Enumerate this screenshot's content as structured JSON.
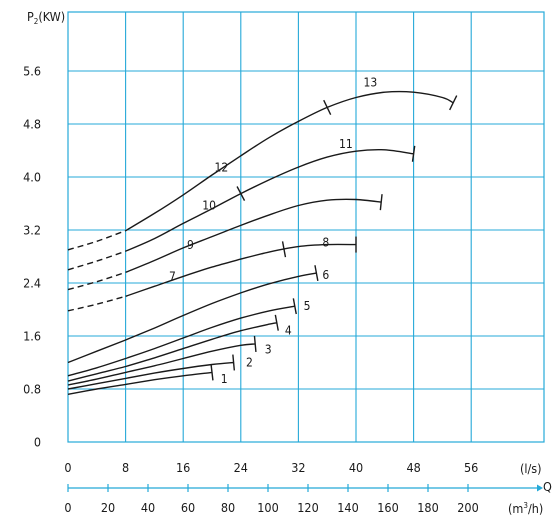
{
  "chart_data": {
    "type": "line",
    "ylabel_main": "P",
    "ylabel_sub": "2",
    "ylabel_unit": "(KW)",
    "x_unit": "(l/s)",
    "x_symbol": "Q",
    "x2_unit_main": "(m",
    "x2_unit_sup": "3",
    "x2_unit_end": "/h)",
    "xlim": [
      0,
      62
    ],
    "ylim": [
      0,
      6.0
    ],
    "xticks": [
      "0",
      "8",
      "16",
      "24",
      "32",
      "40",
      "48",
      "56"
    ],
    "xtick_values": [
      0,
      8,
      16,
      24,
      32,
      40,
      48,
      56
    ],
    "x2ticks": [
      "0",
      "20",
      "40",
      "60",
      "80",
      "100",
      "120",
      "140",
      "160",
      "180",
      "200"
    ],
    "x2tick_values": [
      0,
      20,
      40,
      60,
      80,
      100,
      120,
      140,
      160,
      180,
      200
    ],
    "yticks": [
      "0",
      "0.8",
      "1.6",
      "2.4",
      "3.2",
      "4.0",
      "4.8",
      "5.6"
    ],
    "ytick_values": [
      0,
      0.8,
      1.6,
      2.4,
      3.2,
      4.0,
      4.8,
      5.6
    ],
    "series": [
      {
        "name": "1",
        "points": [
          [
            0,
            0.72
          ],
          [
            4,
            0.8
          ],
          [
            8,
            0.87
          ],
          [
            12,
            0.94
          ],
          [
            16,
            1.0
          ],
          [
            20,
            1.05
          ]
        ],
        "dash_to": 0,
        "marks": [
          20
        ],
        "label_pos": [
          21.7,
          0.95
        ]
      },
      {
        "name": "2",
        "points": [
          [
            0,
            0.8
          ],
          [
            4,
            0.88
          ],
          [
            8,
            0.96
          ],
          [
            12,
            1.04
          ],
          [
            16,
            1.11
          ],
          [
            20,
            1.17
          ],
          [
            23,
            1.2
          ]
        ],
        "dash_to": 0,
        "marks": [
          23
        ],
        "label_pos": [
          25.2,
          1.2
        ]
      },
      {
        "name": "3",
        "points": [
          [
            0,
            0.86
          ],
          [
            4,
            0.95
          ],
          [
            8,
            1.05
          ],
          [
            12,
            1.15
          ],
          [
            16,
            1.26
          ],
          [
            20,
            1.37
          ],
          [
            24,
            1.46
          ],
          [
            26,
            1.48
          ]
        ],
        "dash_to": 0,
        "marks": [
          26
        ],
        "label_pos": [
          27.8,
          1.4
        ]
      },
      {
        "name": "4",
        "points": [
          [
            0,
            0.92
          ],
          [
            4,
            1.03
          ],
          [
            8,
            1.14
          ],
          [
            12,
            1.27
          ],
          [
            16,
            1.41
          ],
          [
            20,
            1.55
          ],
          [
            24,
            1.68
          ],
          [
            28,
            1.78
          ],
          [
            29,
            1.8
          ]
        ],
        "dash_to": 0,
        "marks": [
          29
        ],
        "label_pos": [
          30.6,
          1.68
        ]
      },
      {
        "name": "5",
        "points": [
          [
            0,
            1.0
          ],
          [
            4,
            1.12
          ],
          [
            8,
            1.26
          ],
          [
            12,
            1.41
          ],
          [
            16,
            1.57
          ],
          [
            20,
            1.73
          ],
          [
            24,
            1.87
          ],
          [
            28,
            1.98
          ],
          [
            31.5,
            2.05
          ]
        ],
        "dash_to": 0,
        "marks": [
          31.5
        ],
        "label_pos": [
          33.2,
          2.05
        ]
      },
      {
        "name": "6",
        "points": [
          [
            0,
            1.2
          ],
          [
            4,
            1.37
          ],
          [
            8,
            1.54
          ],
          [
            12,
            1.72
          ],
          [
            16,
            1.91
          ],
          [
            20,
            2.09
          ],
          [
            24,
            2.25
          ],
          [
            28,
            2.39
          ],
          [
            32,
            2.5
          ],
          [
            34.5,
            2.55
          ]
        ],
        "dash_to": 0,
        "marks": [
          34.5
        ],
        "label_pos": [
          35.8,
          2.52
        ]
      },
      {
        "name": "7",
        "points": [
          [
            0,
            1.98
          ],
          [
            4,
            2.08
          ],
          [
            8,
            2.2
          ],
          [
            12,
            2.35
          ],
          [
            16,
            2.5
          ],
          [
            20,
            2.64
          ],
          [
            24,
            2.76
          ],
          [
            28,
            2.87
          ],
          [
            32,
            2.95
          ],
          [
            36,
            2.98
          ],
          [
            40,
            2.98
          ]
        ],
        "dash_to": 8,
        "marks": [
          30,
          40
        ],
        "label_pos": [
          14.5,
          2.5
        ]
      },
      {
        "name": "8",
        "points": [
          [
            36,
            3.01
          ]
        ],
        "dash_to": 0,
        "marks": [],
        "label_pos": [
          35.8,
          3.01
        ]
      },
      {
        "name": "9",
        "points": [
          [
            0,
            2.3
          ],
          [
            4,
            2.42
          ],
          [
            8,
            2.56
          ],
          [
            12,
            2.74
          ],
          [
            16,
            2.93
          ],
          [
            20,
            3.1
          ],
          [
            24,
            3.27
          ],
          [
            28,
            3.43
          ],
          [
            32,
            3.57
          ],
          [
            36,
            3.65
          ],
          [
            40,
            3.66
          ],
          [
            43.5,
            3.62
          ]
        ],
        "dash_to": 8,
        "marks": [
          43.5
        ],
        "label_pos": [
          17.0,
          2.97
        ]
      },
      {
        "name": "10",
        "points": [
          [
            0,
            2.6
          ],
          [
            4,
            2.73
          ],
          [
            8,
            2.88
          ],
          [
            12,
            3.07
          ],
          [
            16,
            3.3
          ],
          [
            20,
            3.52
          ],
          [
            24,
            3.75
          ],
          [
            28,
            3.96
          ],
          [
            32,
            4.15
          ],
          [
            36,
            4.3
          ],
          [
            40,
            4.39
          ],
          [
            44,
            4.41
          ],
          [
            48,
            4.35
          ]
        ],
        "dash_to": 8,
        "marks": [
          24,
          48
        ],
        "label_pos": [
          19.6,
          3.57
        ]
      },
      {
        "name": "11",
        "points": [
          [
            39,
            4.5
          ]
        ],
        "dash_to": 0,
        "marks": [],
        "label_pos": [
          38.6,
          4.5
        ]
      },
      {
        "name": "12",
        "points": [
          [
            0,
            2.9
          ],
          [
            4,
            3.03
          ],
          [
            8,
            3.19
          ],
          [
            12,
            3.45
          ],
          [
            16,
            3.73
          ],
          [
            20,
            4.03
          ],
          [
            24,
            4.32
          ],
          [
            28,
            4.6
          ],
          [
            32,
            4.84
          ],
          [
            36,
            5.05
          ],
          [
            40,
            5.2
          ],
          [
            44,
            5.28
          ],
          [
            48,
            5.28
          ],
          [
            52,
            5.2
          ],
          [
            53.5,
            5.12
          ]
        ],
        "dash_to": 8,
        "marks": [
          36,
          53.5
        ],
        "label_pos": [
          21.3,
          4.14
        ]
      },
      {
        "name": "13",
        "points": [
          [
            42,
            5.43
          ]
        ],
        "dash_to": 0,
        "marks": [],
        "label_pos": [
          42.0,
          5.43
        ]
      }
    ]
  }
}
